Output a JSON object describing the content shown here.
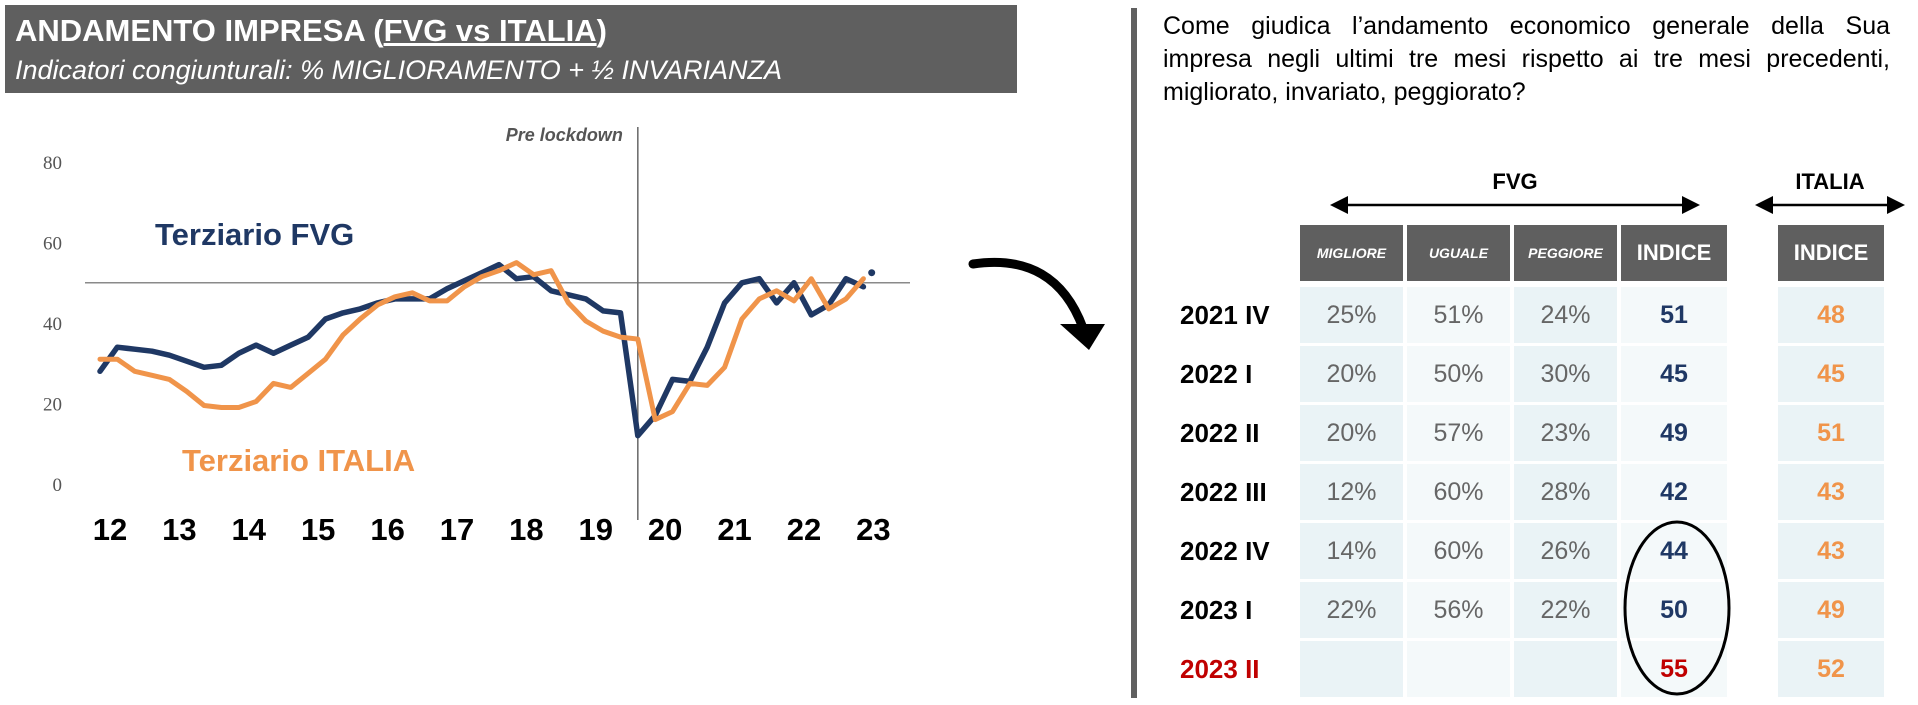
{
  "header": {
    "title_prefix": "ANDAMENTO IMPRESA (",
    "title_underlined": "FVG vs ITALIA",
    "title_suffix": ")",
    "subtitle": "Indicatori congiunturali: % MIGLIORAMENTO + ½ INVARIANZA"
  },
  "chart_data": {
    "type": "line",
    "yticks": [
      0,
      20,
      40,
      60,
      80
    ],
    "ylim": [
      0,
      80
    ],
    "xlabels": [
      "12",
      "13",
      "14",
      "15",
      "16",
      "17",
      "18",
      "19",
      "20",
      "21",
      "22",
      "23"
    ],
    "x_range": [
      2012,
      2023.6
    ],
    "reference_line": 50,
    "vertical_marker": {
      "x": 2019.75,
      "label": "Pre lockdown"
    },
    "series": [
      {
        "name": "Terziario FVG",
        "color": "#1f3864",
        "x": [
          2012,
          2012.25,
          2012.5,
          2012.75,
          2013,
          2013.25,
          2013.5,
          2013.75,
          2014,
          2014.25,
          2014.5,
          2014.75,
          2015,
          2015.25,
          2015.5,
          2015.75,
          2016,
          2016.25,
          2016.5,
          2016.75,
          2017,
          2017.25,
          2017.5,
          2017.75,
          2018,
          2018.25,
          2018.5,
          2018.75,
          2019,
          2019.25,
          2019.5,
          2019.75,
          2020,
          2020.25,
          2020.5,
          2020.75,
          2021,
          2021.25,
          2021.5,
          2021.75,
          2022,
          2022.25,
          2022.5,
          2022.75,
          2023
        ],
        "values": [
          28,
          34,
          33.5,
          33,
          32,
          30.5,
          29,
          29.5,
          32.5,
          34.5,
          32.5,
          34.5,
          36.5,
          41,
          42.5,
          43.5,
          45,
          46,
          46,
          46,
          48.5,
          50.5,
          52.5,
          54.5,
          51,
          51.5,
          48,
          47,
          46,
          43,
          42.5,
          12,
          17,
          26,
          25.5,
          34,
          45,
          50,
          51,
          45,
          50,
          42,
          44.5,
          51,
          49
        ]
      },
      {
        "name": "Terziario ITALIA",
        "color": "#f0944a",
        "x": [
          2012,
          2012.25,
          2012.5,
          2012.75,
          2013,
          2013.25,
          2013.5,
          2013.75,
          2014,
          2014.25,
          2014.5,
          2014.75,
          2015,
          2015.25,
          2015.5,
          2015.75,
          2016,
          2016.25,
          2016.5,
          2016.75,
          2017,
          2017.25,
          2017.5,
          2017.75,
          2018,
          2018.25,
          2018.5,
          2018.75,
          2019,
          2019.25,
          2019.5,
          2019.75,
          2020,
          2020.25,
          2020.5,
          2020.75,
          2021,
          2021.25,
          2021.5,
          2021.75,
          2022,
          2022.25,
          2022.5,
          2022.75,
          2023
        ],
        "values": [
          31,
          31,
          28,
          27,
          26,
          23,
          19.5,
          19,
          19,
          20.5,
          25,
          24,
          27.5,
          31,
          37,
          41,
          44.5,
          46.5,
          47.5,
          45.5,
          45.5,
          49,
          51.5,
          53,
          55,
          52,
          53,
          45,
          40.5,
          38,
          36.5,
          36,
          16,
          18,
          25,
          24.5,
          29,
          41,
          46,
          48,
          45.5,
          51,
          43.5,
          46,
          51
        ]
      }
    ]
  },
  "right": {
    "question": "Come giudica l’andamento economico generale della Sua impresa negli ultimi tre mesi rispetto ai tre mesi precedenti, migliorato, invariato, peggiorato?",
    "group_fvg": "FVG",
    "group_italia": "ITALIA",
    "columns": [
      "MIGLIORE",
      "UGUALE",
      "PEGGIORE",
      "INDICE"
    ],
    "italia_column": "INDICE",
    "rows": [
      {
        "label": "2021 IV",
        "migliore": "25%",
        "uguale": "51%",
        "peggiore": "24%",
        "indice": "51",
        "italia": "48"
      },
      {
        "label": "2022 I",
        "migliore": "20%",
        "uguale": "50%",
        "peggiore": "30%",
        "indice": "45",
        "italia": "45"
      },
      {
        "label": "2022 II",
        "migliore": "20%",
        "uguale": "57%",
        "peggiore": "23%",
        "indice": "49",
        "italia": "51"
      },
      {
        "label": "2022 III",
        "migliore": "12%",
        "uguale": "60%",
        "peggiore": "28%",
        "indice": "42",
        "italia": "43"
      },
      {
        "label": "2022 IV",
        "migliore": "14%",
        "uguale": "60%",
        "peggiore": "26%",
        "indice": "44",
        "italia": "43"
      },
      {
        "label": "2023 I",
        "migliore": "22%",
        "uguale": "56%",
        "peggiore": "22%",
        "indice": "50",
        "italia": "49"
      },
      {
        "label": "2023 II",
        "migliore": "",
        "uguale": "",
        "peggiore": "",
        "indice": "55",
        "italia": "52",
        "highlight": "#c00000"
      }
    ]
  }
}
